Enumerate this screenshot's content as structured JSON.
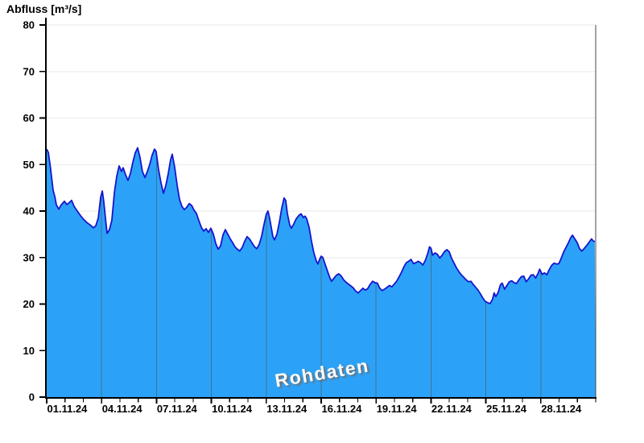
{
  "chart": {
    "title": "Abfluss [m³/s]",
    "watermark": "Rohdaten"
  },
  "chart_data": {
    "type": "area",
    "title": "Abfluss [m³/s]",
    "watermark": "Rohdaten",
    "ylabel": "Abfluss [m³/s]",
    "xlabel": "",
    "ylim": [
      0,
      80
    ],
    "y_ticks": [
      0,
      10,
      20,
      30,
      40,
      50,
      60,
      70,
      80
    ],
    "x_range_days": [
      0,
      30
    ],
    "x_minor_tick_step_days": 1,
    "x_ticks": [
      {
        "day": 0,
        "label": "01.11.24"
      },
      {
        "day": 3,
        "label": "04.11.24"
      },
      {
        "day": 6,
        "label": "07.11.24"
      },
      {
        "day": 9,
        "label": "10.11.24"
      },
      {
        "day": 12,
        "label": "13.11.24"
      },
      {
        "day": 15,
        "label": "16.11.24"
      },
      {
        "day": 18,
        "label": "19.11.24"
      },
      {
        "day": 21,
        "label": "22.11.24"
      },
      {
        "day": 24,
        "label": "25.11.24"
      },
      {
        "day": 27,
        "label": "28.11.24"
      }
    ],
    "grid": {
      "horizontal": true,
      "vertical_on_major_ticks": true,
      "vertical_clipped_to_area": true
    },
    "legend": "none",
    "colors": {
      "fill": "#2BA2F8",
      "line": "#1515CE",
      "h_grid": "#eaeaea",
      "v_grid": "#3F7296",
      "right_border": "#4a4a4a",
      "axis": "#000000",
      "watermark_text": "#fbfbfb",
      "watermark_shadow": "#6e6e6e"
    },
    "series": [
      {
        "name": "Abfluss Rohdaten",
        "unit": "m³/s",
        "points": [
          [
            0,
            53.3
          ],
          [
            0.09,
            52.6
          ],
          [
            0.2,
            49.5
          ],
          [
            0.35,
            44.5
          ],
          [
            0.45,
            43.0
          ],
          [
            0.53,
            41.3
          ],
          [
            0.66,
            40.4
          ],
          [
            0.79,
            41.3
          ],
          [
            0.97,
            42.1
          ],
          [
            1.1,
            41.4
          ],
          [
            1.23,
            41.8
          ],
          [
            1.36,
            42.3
          ],
          [
            1.5,
            41.0
          ],
          [
            1.67,
            40.0
          ],
          [
            1.85,
            39.0
          ],
          [
            2.02,
            38.2
          ],
          [
            2.2,
            37.5
          ],
          [
            2.38,
            37.0
          ],
          [
            2.55,
            36.4
          ],
          [
            2.68,
            36.8
          ],
          [
            2.82,
            38.5
          ],
          [
            2.95,
            43.0
          ],
          [
            3.04,
            44.3
          ],
          [
            3.12,
            42.0
          ],
          [
            3.21,
            38.5
          ],
          [
            3.3,
            35.2
          ],
          [
            3.43,
            36.0
          ],
          [
            3.56,
            38.0
          ],
          [
            3.7,
            44.0
          ],
          [
            3.83,
            47.5
          ],
          [
            3.96,
            49.7
          ],
          [
            4.09,
            48.5
          ],
          [
            4.18,
            49.3
          ],
          [
            4.31,
            47.8
          ],
          [
            4.44,
            46.6
          ],
          [
            4.57,
            48.0
          ],
          [
            4.71,
            50.5
          ],
          [
            4.84,
            52.5
          ],
          [
            4.97,
            53.6
          ],
          [
            5.1,
            51.5
          ],
          [
            5.23,
            48.5
          ],
          [
            5.37,
            47.2
          ],
          [
            5.5,
            48.5
          ],
          [
            5.63,
            50.0
          ],
          [
            5.76,
            52.0
          ],
          [
            5.89,
            53.3
          ],
          [
            5.98,
            52.8
          ],
          [
            6.11,
            49.0
          ],
          [
            6.25,
            46.0
          ],
          [
            6.38,
            43.8
          ],
          [
            6.51,
            45.5
          ],
          [
            6.64,
            48.0
          ],
          [
            6.77,
            51.0
          ],
          [
            6.86,
            52.2
          ],
          [
            6.99,
            49.5
          ],
          [
            7.13,
            45.5
          ],
          [
            7.26,
            42.5
          ],
          [
            7.39,
            41.0
          ],
          [
            7.52,
            40.3
          ],
          [
            7.65,
            40.8
          ],
          [
            7.79,
            41.6
          ],
          [
            7.92,
            41.2
          ],
          [
            8.05,
            40.2
          ],
          [
            8.18,
            39.5
          ],
          [
            8.31,
            38.0
          ],
          [
            8.45,
            36.5
          ],
          [
            8.58,
            35.7
          ],
          [
            8.71,
            36.2
          ],
          [
            8.84,
            35.4
          ],
          [
            8.97,
            36.3
          ],
          [
            9.11,
            35.0
          ],
          [
            9.24,
            33.0
          ],
          [
            9.37,
            31.8
          ],
          [
            9.5,
            32.5
          ],
          [
            9.63,
            34.8
          ],
          [
            9.76,
            36.0
          ],
          [
            9.9,
            35.0
          ],
          [
            10.03,
            34.0
          ],
          [
            10.16,
            33.2
          ],
          [
            10.29,
            32.3
          ],
          [
            10.42,
            31.8
          ],
          [
            10.55,
            31.4
          ],
          [
            10.69,
            32.2
          ],
          [
            10.82,
            33.5
          ],
          [
            10.95,
            34.5
          ],
          [
            11.08,
            34.0
          ],
          [
            11.21,
            33.2
          ],
          [
            11.34,
            32.4
          ],
          [
            11.48,
            31.9
          ],
          [
            11.61,
            32.8
          ],
          [
            11.74,
            34.5
          ],
          [
            11.87,
            37.0
          ],
          [
            12.0,
            39.3
          ],
          [
            12.09,
            40.0
          ],
          [
            12.18,
            38.5
          ],
          [
            12.27,
            36.5
          ],
          [
            12.36,
            34.5
          ],
          [
            12.45,
            33.8
          ],
          [
            12.58,
            35.0
          ],
          [
            12.71,
            37.5
          ],
          [
            12.84,
            40.5
          ],
          [
            12.97,
            42.8
          ],
          [
            13.06,
            42.3
          ],
          [
            13.15,
            39.5
          ],
          [
            13.28,
            37.0
          ],
          [
            13.37,
            36.3
          ],
          [
            13.5,
            37.2
          ],
          [
            13.63,
            38.3
          ],
          [
            13.77,
            39.0
          ],
          [
            13.9,
            39.4
          ],
          [
            14.03,
            38.6
          ],
          [
            14.12,
            38.9
          ],
          [
            14.21,
            38.3
          ],
          [
            14.34,
            36.5
          ],
          [
            14.47,
            33.5
          ],
          [
            14.6,
            31.0
          ],
          [
            14.73,
            29.3
          ],
          [
            14.82,
            28.6
          ],
          [
            14.91,
            29.6
          ],
          [
            15.0,
            30.3
          ],
          [
            15.09,
            30.0
          ],
          [
            15.22,
            28.5
          ],
          [
            15.35,
            27.0
          ],
          [
            15.48,
            25.6
          ],
          [
            15.57,
            24.9
          ],
          [
            15.7,
            25.6
          ],
          [
            15.83,
            26.2
          ],
          [
            15.96,
            26.5
          ],
          [
            16.1,
            26.0
          ],
          [
            16.23,
            25.2
          ],
          [
            16.36,
            24.7
          ],
          [
            16.49,
            24.3
          ],
          [
            16.62,
            23.9
          ],
          [
            16.75,
            23.5
          ],
          [
            16.88,
            22.8
          ],
          [
            17.02,
            22.4
          ],
          [
            17.15,
            22.9
          ],
          [
            17.28,
            23.4
          ],
          [
            17.41,
            23.0
          ],
          [
            17.54,
            23.3
          ],
          [
            17.67,
            24.2
          ],
          [
            17.81,
            24.9
          ],
          [
            17.94,
            24.6
          ],
          [
            18.07,
            24.5
          ],
          [
            18.2,
            23.4
          ],
          [
            18.33,
            22.9
          ],
          [
            18.46,
            23.2
          ],
          [
            18.6,
            23.6
          ],
          [
            18.73,
            24.0
          ],
          [
            18.86,
            23.7
          ],
          [
            18.99,
            24.3
          ],
          [
            19.12,
            24.9
          ],
          [
            19.25,
            25.8
          ],
          [
            19.38,
            26.8
          ],
          [
            19.52,
            28.0
          ],
          [
            19.65,
            28.9
          ],
          [
            19.78,
            29.2
          ],
          [
            19.91,
            29.6
          ],
          [
            20.04,
            28.7
          ],
          [
            20.17,
            28.9
          ],
          [
            20.3,
            29.2
          ],
          [
            20.43,
            28.9
          ],
          [
            20.56,
            28.4
          ],
          [
            20.7,
            29.5
          ],
          [
            20.83,
            31.0
          ],
          [
            20.92,
            32.3
          ],
          [
            21.0,
            32.0
          ],
          [
            21.09,
            30.5
          ],
          [
            21.22,
            31.0
          ],
          [
            21.35,
            30.7
          ],
          [
            21.48,
            29.9
          ],
          [
            21.61,
            30.5
          ],
          [
            21.74,
            31.3
          ],
          [
            21.87,
            31.7
          ],
          [
            22.0,
            31.2
          ],
          [
            22.13,
            29.8
          ],
          [
            22.26,
            28.8
          ],
          [
            22.39,
            27.8
          ],
          [
            22.52,
            27.0
          ],
          [
            22.65,
            26.3
          ],
          [
            22.78,
            25.8
          ],
          [
            22.92,
            25.2
          ],
          [
            23.05,
            24.8
          ],
          [
            23.18,
            24.9
          ],
          [
            23.31,
            24.2
          ],
          [
            23.44,
            23.6
          ],
          [
            23.57,
            23.0
          ],
          [
            23.7,
            22.2
          ],
          [
            23.83,
            21.3
          ],
          [
            23.96,
            20.6
          ],
          [
            24.09,
            20.3
          ],
          [
            24.23,
            20.1
          ],
          [
            24.36,
            21.0
          ],
          [
            24.45,
            22.4
          ],
          [
            24.54,
            21.6
          ],
          [
            24.67,
            22.5
          ],
          [
            24.8,
            24.2
          ],
          [
            24.89,
            24.5
          ],
          [
            25.02,
            23.2
          ],
          [
            25.15,
            24.0
          ],
          [
            25.28,
            24.8
          ],
          [
            25.41,
            25.0
          ],
          [
            25.54,
            24.6
          ],
          [
            25.67,
            24.4
          ],
          [
            25.8,
            25.2
          ],
          [
            25.94,
            25.9
          ],
          [
            26.07,
            26.0
          ],
          [
            26.2,
            24.8
          ],
          [
            26.33,
            25.4
          ],
          [
            26.46,
            26.2
          ],
          [
            26.59,
            26.3
          ],
          [
            26.72,
            25.6
          ],
          [
            26.85,
            26.6
          ],
          [
            26.94,
            27.5
          ],
          [
            27.07,
            26.4
          ],
          [
            27.2,
            26.7
          ],
          [
            27.33,
            26.3
          ],
          [
            27.46,
            27.4
          ],
          [
            27.59,
            28.3
          ],
          [
            27.73,
            28.8
          ],
          [
            27.86,
            28.6
          ],
          [
            27.99,
            28.7
          ],
          [
            28.12,
            29.9
          ],
          [
            28.25,
            31.2
          ],
          [
            28.38,
            32.2
          ],
          [
            28.51,
            33.2
          ],
          [
            28.64,
            34.3
          ],
          [
            28.73,
            34.8
          ],
          [
            28.86,
            34.0
          ],
          [
            28.99,
            33.2
          ],
          [
            29.12,
            31.9
          ],
          [
            29.25,
            31.4
          ],
          [
            29.38,
            32.0
          ],
          [
            29.51,
            32.6
          ],
          [
            29.64,
            33.3
          ],
          [
            29.77,
            34.0
          ],
          [
            29.86,
            33.6
          ],
          [
            29.95,
            33.4
          ]
        ]
      }
    ]
  }
}
